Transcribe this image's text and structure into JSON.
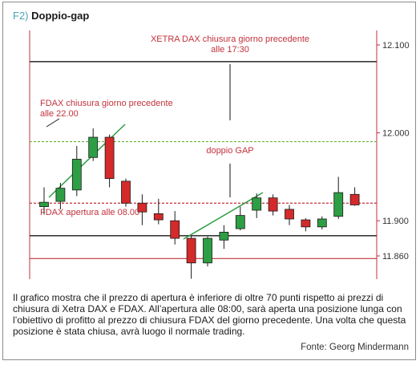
{
  "title": {
    "figure_label": "F2)",
    "name": "Doppio-gap"
  },
  "chart_data": {
    "type": "candlestick",
    "title": "Doppio-gap",
    "ylim": [
      11850,
      12125
    ],
    "y_ticks": [
      {
        "value": 12100,
        "label": "12.100"
      },
      {
        "value": 12000,
        "label": "12.000"
      },
      {
        "value": 11900,
        "label": "11.900"
      },
      {
        "value": 11860,
        "label": "11.860"
      }
    ],
    "candles": [
      {
        "open": 11916,
        "high": 11938,
        "low": 11907,
        "close": 11921,
        "direction": "up"
      },
      {
        "open": 11922,
        "high": 11943,
        "low": 11913,
        "close": 11937,
        "direction": "up"
      },
      {
        "open": 11935,
        "high": 11985,
        "low": 11928,
        "close": 11970,
        "direction": "up"
      },
      {
        "open": 11972,
        "high": 12005,
        "low": 11968,
        "close": 11995,
        "direction": "up"
      },
      {
        "open": 11995,
        "high": 11998,
        "low": 11938,
        "close": 11948,
        "direction": "down"
      },
      {
        "open": 11945,
        "high": 11948,
        "low": 11916,
        "close": 11920,
        "direction": "down"
      },
      {
        "open": 11920,
        "high": 11930,
        "low": 11895,
        "close": 11910,
        "direction": "down"
      },
      {
        "open": 11908,
        "high": 11925,
        "low": 11896,
        "close": 11901,
        "direction": "down"
      },
      {
        "open": 11900,
        "high": 11911,
        "low": 11873,
        "close": 11880,
        "direction": "down"
      },
      {
        "open": 11880,
        "high": 11883,
        "low": 11834,
        "close": 11852,
        "direction": "down"
      },
      {
        "open": 11852,
        "high": 11882,
        "low": 11848,
        "close": 11880,
        "direction": "up"
      },
      {
        "open": 11878,
        "high": 11895,
        "low": 11868,
        "close": 11887,
        "direction": "up"
      },
      {
        "open": 11891,
        "high": 11916,
        "low": 11889,
        "close": 11906,
        "direction": "up"
      },
      {
        "open": 11912,
        "high": 11931,
        "low": 11903,
        "close": 11926,
        "direction": "up"
      },
      {
        "open": 11926,
        "high": 11930,
        "low": 11906,
        "close": 11911,
        "direction": "down"
      },
      {
        "open": 11913,
        "high": 11918,
        "low": 11895,
        "close": 11902,
        "direction": "down"
      },
      {
        "open": 11901,
        "high": 11903,
        "low": 11888,
        "close": 11893,
        "direction": "down"
      },
      {
        "open": 11893,
        "high": 11905,
        "low": 11890,
        "close": 11902,
        "direction": "up"
      },
      {
        "open": 11905,
        "high": 11950,
        "low": 11902,
        "close": 11932,
        "direction": "up"
      },
      {
        "open": 11930,
        "high": 11938,
        "low": 11917,
        "close": 11918,
        "direction": "down"
      }
    ],
    "reference_levels": [
      {
        "value": 12081,
        "style": "solid",
        "color": "#3a3a3a"
      },
      {
        "value": 11990,
        "style": "dashed",
        "color": "#6db33f"
      },
      {
        "value": 11920,
        "style": "dashed",
        "color": "#c2323c"
      },
      {
        "value": 11883,
        "style": "solid",
        "color": "#3a3a3a"
      },
      {
        "value": 11857,
        "style": "solid",
        "color": "#c2323c"
      }
    ],
    "annotations": [
      {
        "lines": [
          "XETRA DAX chiusura giorno precedente",
          "alle 17:30"
        ]
      },
      {
        "lines": [
          "FDAX chiusura giorno precedente",
          "alle 22.00"
        ]
      },
      {
        "lines": [
          "doppio GAP"
        ]
      },
      {
        "lines": [
          "FDAX apertura alle 08.00"
        ]
      }
    ],
    "colors": {
      "up": "#2e9e44",
      "down": "#d42a2a",
      "wick": "#1a1a1a",
      "accent": "#c2323c",
      "target": "#6db33f"
    }
  },
  "caption": "Il grafico mostra che il prezzo di apertura è inferiore di oltre 70 punti rispetto ai prezzi di chiusura di Xetra DAX e FDAX. All’apertura alle 08:00, sarà aperta una posizione lunga con l’obiettivo di profitto al prezzo di chiusura FDAX del giorno precedente. Una volta che questa posizione è stata chiusa, avrà luogo il normale trading.",
  "source": "Fonte: Georg Mindermann"
}
